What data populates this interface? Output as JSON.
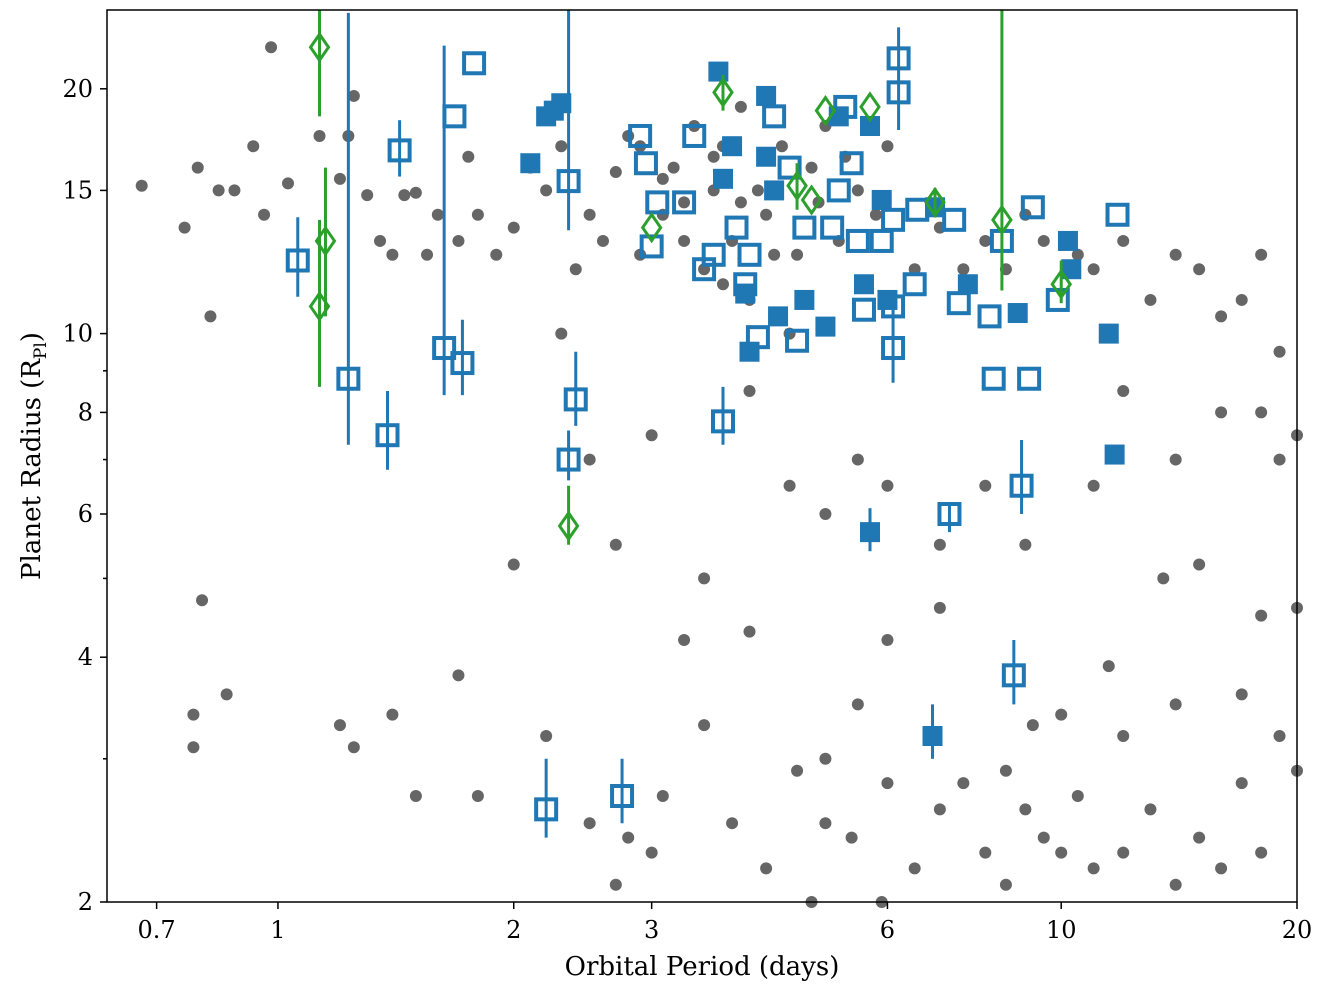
{
  "chart_data": {
    "type": "scatter",
    "xlabel": "Orbital Period (days)",
    "ylabel": "Planet Radius (R",
    "ylabel_sub": "Pl",
    "ylabel_end": ")",
    "xlog": true,
    "ylog": true,
    "xlim": [
      0.605,
      20
    ],
    "ylim": [
      2,
      25
    ],
    "xticks": [
      0.7,
      1,
      2,
      3,
      6,
      10,
      20
    ],
    "yticks": [
      2,
      4,
      6,
      8,
      10,
      15,
      20
    ],
    "yminorticks": [
      3,
      5,
      7,
      9
    ],
    "series": [
      {
        "marker": "circle",
        "color": "#000000",
        "alpha": 0.6,
        "x": [
          0.67,
          0.76,
          0.79,
          0.82,
          0.84,
          0.88,
          0.93,
          0.96,
          0.98,
          1.03,
          1.13,
          1.2,
          1.23,
          1.25,
          1.3,
          1.35,
          1.4,
          1.45,
          1.5,
          1.55,
          1.6,
          1.7,
          1.75,
          1.8,
          1.9,
          2.0,
          2.1,
          2.2,
          2.3,
          2.4,
          2.5,
          2.6,
          2.7,
          2.8,
          2.9,
          3.1,
          3.2,
          3.3,
          3.4,
          3.5,
          3.6,
          3.7,
          3.8,
          3.9,
          4.0,
          4.1,
          4.2,
          4.4,
          4.6,
          4.8,
          5.0,
          5.2,
          5.5,
          5.8,
          6.0,
          6.5,
          7.0,
          7.5,
          8.0,
          8.5,
          9.0,
          9.5,
          10.5,
          11,
          12,
          13,
          14,
          15,
          16,
          17,
          18,
          19,
          20,
          19,
          18,
          16,
          14,
          12,
          11,
          9,
          8,
          7,
          6,
          5.5,
          5,
          4.5,
          4,
          3.5,
          3,
          2.7,
          2.5,
          2.3,
          2.0,
          1.7,
          1.4,
          1.25,
          1.2,
          0.78,
          0.78,
          0.86,
          0.8,
          1.5,
          1.8,
          2.2,
          2.8,
          3.1,
          3.5,
          3.8,
          4.2,
          4.6,
          5,
          5.4,
          6,
          6.5,
          7,
          7.5,
          8,
          8.5,
          9,
          9.5,
          10,
          10.5,
          11,
          12,
          13,
          14,
          15,
          16,
          17,
          18,
          19,
          20,
          17,
          14,
          12,
          10,
          7,
          6,
          5.5,
          5,
          4,
          3.3,
          2.5,
          2.7,
          3.0,
          4.8,
          5.9,
          8.5,
          9.2,
          11.5,
          13.5,
          15,
          18,
          20,
          3.3,
          3.1,
          3.6,
          3.9,
          4.3,
          4.9,
          5.3,
          2.9,
          3.7,
          4.5
        ],
        "y": [
          15.2,
          13.5,
          16,
          10.5,
          15,
          15,
          17,
          14,
          22.5,
          15.3,
          17.5,
          15.5,
          17.5,
          19.6,
          14.8,
          13,
          12.5,
          14.8,
          14.9,
          12.5,
          14,
          13,
          16.5,
          14,
          12.5,
          13.5,
          16,
          15,
          17,
          12,
          14,
          13,
          15.8,
          17.5,
          12.5,
          14,
          16,
          13,
          18,
          12,
          15,
          17,
          13,
          19,
          11,
          15,
          14,
          17,
          12.5,
          16,
          18,
          13,
          15,
          14,
          17,
          12,
          13.5,
          12,
          13,
          12,
          14,
          13,
          12.5,
          12,
          13,
          11,
          12.5,
          12,
          10.5,
          11,
          12.5,
          9.5,
          7.5,
          7,
          8,
          8,
          7,
          8.5,
          6.5,
          5.5,
          6.5,
          5.5,
          6.5,
          7,
          6,
          6.5,
          8.5,
          5,
          7.5,
          5.5,
          7,
          10,
          5.2,
          3.8,
          3.4,
          3.1,
          3.3,
          3.4,
          3.1,
          3.6,
          4.7,
          2.7,
          2.7,
          3.2,
          2.4,
          2.7,
          3.3,
          2.5,
          2.2,
          2.9,
          2.5,
          2.4,
          2.8,
          2.2,
          2.6,
          2.8,
          2.3,
          2.1,
          2.6,
          2.4,
          2.3,
          2.7,
          2.2,
          2.3,
          2.6,
          2.1,
          2.4,
          2.2,
          2.8,
          2.3,
          3.2,
          2.9,
          3.6,
          3.5,
          3.2,
          3.4,
          4.6,
          4.2,
          3.5,
          3.0,
          4.3,
          4.2,
          2.5,
          2.1,
          2.3,
          2.0,
          2.0,
          2.9,
          3.3,
          3.9,
          5,
          5.2,
          4.5,
          4.6,
          14.5,
          15.5,
          16.5,
          14.5,
          12.5,
          14.5,
          16.5,
          17,
          11.5,
          10
        ]
      },
      {
        "marker": "square-open",
        "color": "#1f77b4",
        "x": [
          1.06,
          1.23,
          1.38,
          1.43,
          1.63,
          1.68,
          1.72,
          1.78,
          2.2,
          2.35,
          2.35,
          2.4,
          2.75,
          2.9,
          2.95,
          3.0,
          3.05,
          3.3,
          3.4,
          3.5,
          3.6,
          3.7,
          3.85,
          3.95,
          4.0,
          4.1,
          4.3,
          4.5,
          4.6,
          4.7,
          5.1,
          5.2,
          5.3,
          5.4,
          5.5,
          5.6,
          5.9,
          6.1,
          6.2,
          6.2,
          6.1,
          6.1,
          6.5,
          6.55,
          7.2,
          7.3,
          7.4,
          8.1,
          8.2,
          8.4,
          8.7,
          8.9,
          9.1,
          9.2,
          9.9,
          11.8
        ],
        "y": [
          12.3,
          8.8,
          7.5,
          16.8,
          9.6,
          18.5,
          9.2,
          21.5,
          2.6,
          15.4,
          7,
          8.3,
          2.7,
          17.5,
          16.2,
          12.8,
          14.5,
          14.5,
          17.5,
          12,
          12.5,
          7.8,
          13.5,
          11.5,
          12.5,
          9.9,
          18.5,
          16,
          9.8,
          13.5,
          13.5,
          15,
          19,
          16.2,
          13,
          10.7,
          13,
          13.8,
          21.8,
          19.8,
          10.8,
          9.6,
          11.5,
          14.2,
          6,
          13.8,
          10.9,
          10.5,
          8.8,
          13,
          3.8,
          6.5,
          8.8,
          14.3,
          11,
          14
        ],
        "err_lo": [
          1.2,
          1.5,
          0.7,
          1.2,
          1.2,
          null,
          0.8,
          null,
          0.2,
          2,
          0.4,
          0.6,
          0.2,
          null,
          null,
          null,
          null,
          null,
          null,
          null,
          null,
          0.5,
          null,
          null,
          null,
          null,
          null,
          null,
          null,
          null,
          null,
          null,
          null,
          null,
          null,
          null,
          null,
          null,
          null,
          2,
          null,
          0.9,
          null,
          null,
          0.3,
          null,
          null,
          null,
          null,
          null,
          0.3,
          0.5,
          null,
          null,
          null,
          null
        ],
        "err_hi": [
          1.6,
          16,
          1,
          1.5,
          13,
          null,
          1.2,
          null,
          0.4,
          10,
          0.6,
          1.2,
          0.3,
          null,
          null,
          null,
          null,
          null,
          null,
          null,
          null,
          0.8,
          null,
          null,
          null,
          null,
          null,
          null,
          null,
          null,
          null,
          null,
          null,
          null,
          null,
          null,
          null,
          null,
          null,
          4,
          null,
          1.5,
          null,
          null,
          0.2,
          null,
          null,
          null,
          null,
          null,
          0.4,
          0.9,
          null,
          null,
          null,
          null
        ]
      },
      {
        "marker": "square",
        "color": "#1f77b4",
        "x": [
          2.1,
          2.2,
          2.25,
          2.3,
          3.65,
          3.7,
          3.8,
          3.95,
          4.0,
          4.2,
          4.3,
          4.2,
          4.35,
          4.7,
          5.0,
          5.2,
          5.6,
          5.7,
          5.7,
          5.9,
          6.0,
          6.9,
          6.85,
          7.6,
          8.8,
          10.2,
          10.3,
          11.5,
          11.7
        ],
        "y": [
          16.2,
          18.5,
          18.8,
          19.2,
          21,
          15.5,
          17,
          11.2,
          9.5,
          16.5,
          15,
          19.6,
          10.5,
          11,
          10.2,
          18.5,
          11.5,
          18,
          5.7,
          14.6,
          11,
          14.3,
          3.2,
          11.5,
          10.6,
          13,
          12,
          10,
          7.1
        ],
        "err_lo": [
          null,
          null,
          null,
          null,
          null,
          null,
          null,
          null,
          null,
          null,
          null,
          null,
          null,
          null,
          null,
          null,
          null,
          null,
          0.3,
          null,
          null,
          null,
          0.2,
          null,
          null,
          null,
          null,
          null,
          null
        ],
        "err_hi": [
          null,
          null,
          null,
          null,
          null,
          null,
          null,
          null,
          null,
          null,
          null,
          null,
          null,
          null,
          null,
          null,
          null,
          null,
          0.4,
          null,
          null,
          null,
          0.3,
          null,
          null,
          null,
          null,
          null,
          null
        ]
      },
      {
        "marker": "diamond-open",
        "color": "#2ca02c",
        "x": [
          1.13,
          1.15,
          1.13,
          2.35,
          3.0,
          3.7,
          4.6,
          4.8,
          5.0,
          5.7,
          6.9,
          8.4,
          10
        ],
        "y": [
          22.5,
          13,
          10.8,
          5.8,
          13.5,
          19.8,
          15.2,
          14.6,
          18.8,
          19,
          14.5,
          13.8,
          11.5
        ],
        "err_lo": [
          4,
          2.5,
          2.2,
          0.3,
          null,
          1,
          1,
          null,
          null,
          null,
          0.6,
          2.5,
          0.6
        ],
        "err_hi": [
          3,
          3,
          3,
          0.7,
          null,
          1,
          1,
          null,
          null,
          null,
          0.6,
          12,
          0.8
        ]
      }
    ]
  }
}
